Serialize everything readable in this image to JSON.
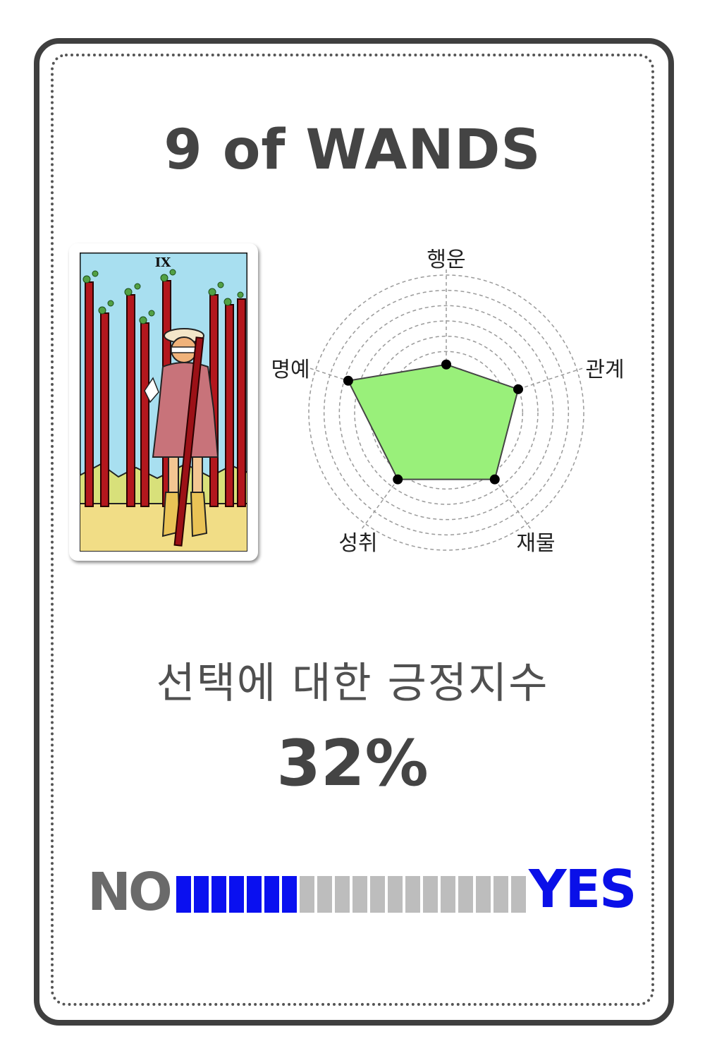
{
  "card": {
    "title": "9 of WANDS",
    "image_roman": "IX"
  },
  "radar": {
    "labels": [
      "행운",
      "관계",
      "재물",
      "성취",
      "명예"
    ],
    "values": [
      0.35,
      0.55,
      0.6,
      0.6,
      0.75
    ],
    "rings": 9,
    "fill_color": "#99f07a",
    "grid_color": "#9a9a9a"
  },
  "result": {
    "heading": "선택에 대한 긍정지수",
    "percent_text": "32%",
    "no_label": "NO",
    "yes_label": "YES",
    "segments_total": 20,
    "segments_on": 7,
    "on_color": "#0a10f0",
    "off_color": "#bdbdbd"
  }
}
